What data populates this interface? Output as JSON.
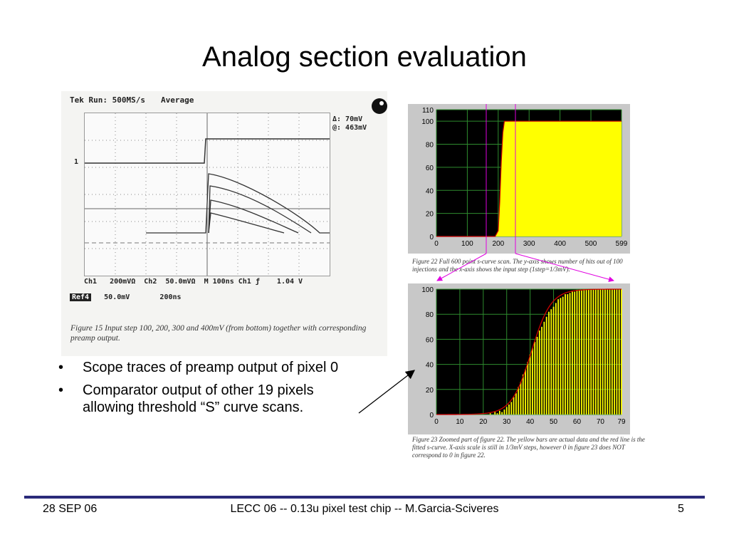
{
  "slide": {
    "title": "Analog section evaluation",
    "footer": {
      "date": "28 SEP 06",
      "center": "LECC 06 -- 0.13u pixel test chip -- M.Garcia-Sciveres",
      "page": "5"
    }
  },
  "bullets": [
    "Scope traces of preamp output of pixel 0",
    "Comparator output of other 19 pixels allowing threshold “S” curve scans."
  ],
  "scope": {
    "header": "Tek Run: 500MS/s",
    "mode": "Average",
    "delta_line1": "Δ: 70mV",
    "delta_line2": "@: 463mV",
    "channel_marker": "1",
    "status_line": "Ch1   200mVΩ  Ch2  50.0mVΩ  M 100ns Ch1 ƒ    1.04 V",
    "ref_label": "Ref4",
    "ref_line": "   50.0mV       200ns",
    "caption": "Figure 15 Input step 100, 200, 300 and 400mV (from bottom) together with corresponding preamp output."
  },
  "fig22": {
    "caption": "Figure 22 Full 600 point s-curve scan. The y-axis shows number of hits out of 100 injections and the x-axis shows the input step (1step=1/3mV).",
    "y_ticks": [
      "0",
      "20",
      "40",
      "60",
      "80",
      "100",
      "110"
    ],
    "x_ticks": [
      "0",
      "100",
      "200",
      "300",
      "400",
      "500",
      "599"
    ]
  },
  "fig23": {
    "caption": "Figure 23 Zoomed part of figure 22. The yellow bars are actual data and the red line is the fitted s-curve. X-axis scale is still in 1/3mV steps, however 0 in figure 23 does NOT correspond to 0 in figure 22.",
    "y_ticks": [
      "0",
      "20",
      "40",
      "60",
      "80",
      "100"
    ],
    "x_ticks": [
      "0",
      "10",
      "20",
      "30",
      "40",
      "50",
      "60",
      "70",
      "79"
    ]
  },
  "colors": {
    "plot_bg": "#000000",
    "bar": "#ffff00",
    "fit": "#cc0000",
    "grid": "#2e8b2e",
    "zoom_markers": "#e000e0",
    "footer_rule": "#2a2a7a"
  },
  "chart_data": [
    {
      "type": "area",
      "ylim": [
        0,
        110
      ],
      "xlim": [
        0,
        599
      ],
      "grid": true,
      "x": [
        0,
        190,
        200,
        205,
        210,
        215,
        220,
        230,
        599
      ],
      "y": [
        0,
        0,
        5,
        30,
        65,
        90,
        100,
        100,
        100
      ]
    },
    {
      "type": "bar",
      "ylim": [
        0,
        100
      ],
      "xlim": [
        0,
        79
      ],
      "grid": true,
      "x": [
        0,
        1,
        2,
        3,
        4,
        5,
        6,
        7,
        8,
        9,
        10,
        11,
        12,
        13,
        14,
        15,
        16,
        17,
        18,
        19,
        20,
        21,
        22,
        23,
        24,
        25,
        26,
        27,
        28,
        29,
        30,
        31,
        32,
        33,
        34,
        35,
        36,
        37,
        38,
        39,
        40,
        41,
        42,
        43,
        44,
        45,
        46,
        47,
        48,
        49,
        50,
        51,
        52,
        53,
        54,
        55,
        56,
        57,
        58,
        59,
        60,
        61,
        62,
        63,
        64,
        65,
        66,
        67,
        68,
        69,
        70,
        71,
        72,
        73,
        74,
        75,
        76,
        77,
        78,
        79
      ],
      "values": [
        0,
        0,
        0,
        0,
        0,
        0,
        0,
        0,
        0,
        0,
        0,
        0,
        0,
        0,
        0,
        0,
        0,
        0,
        0,
        0,
        0,
        0,
        0,
        1,
        0,
        2,
        1,
        3,
        2,
        4,
        6,
        8,
        10,
        14,
        17,
        22,
        26,
        32,
        36,
        42,
        48,
        53,
        58,
        62,
        67,
        70,
        74,
        78,
        82,
        84,
        86,
        89,
        92,
        93,
        94,
        96,
        96,
        97,
        98,
        98,
        99,
        99,
        99,
        100,
        100,
        100,
        100,
        100,
        100,
        100,
        100,
        100,
        100,
        100,
        100,
        100,
        100,
        100,
        100,
        100
      ],
      "fit": "s-curve"
    }
  ]
}
